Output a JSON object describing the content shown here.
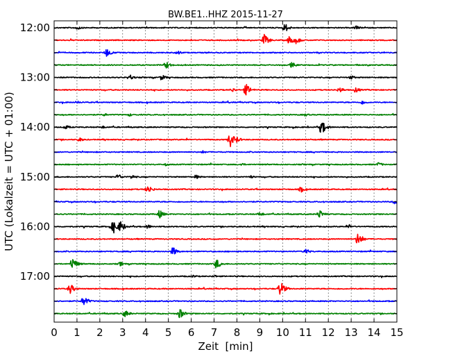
{
  "chart_data": {
    "type": "line",
    "title": "BW.BE1..HHZ 2015-11-27",
    "xlabel": "Zeit  [min]",
    "ylabel": "UTC (Lokalzeit = UTC + 01:00)",
    "xlim": [
      0,
      15
    ],
    "x_ticks": [
      "0",
      "1",
      "2",
      "3",
      "4",
      "5",
      "6",
      "7",
      "8",
      "9",
      "10",
      "11",
      "12",
      "13",
      "14",
      "15"
    ],
    "y_tick_labels": [
      "12:00",
      "13:00",
      "14:00",
      "15:00",
      "16:00",
      "17:00"
    ],
    "grid": true,
    "colors": [
      "#000000",
      "#ff0000",
      "#0000ff",
      "#008000"
    ],
    "traces": [
      {
        "time": "12:00",
        "color": "#000000",
        "events": [
          [
            1.0,
            0.3
          ],
          [
            10.1,
            0.6
          ],
          [
            13.2,
            0.3
          ]
        ]
      },
      {
        "time": "12:15",
        "color": "#ff0000",
        "events": [
          [
            9.2,
            0.8
          ],
          [
            10.3,
            0.6
          ],
          [
            10.6,
            0.5
          ]
        ]
      },
      {
        "time": "12:30",
        "color": "#0000ff",
        "events": [
          [
            2.3,
            0.6
          ],
          [
            5.4,
            0.3
          ]
        ]
      },
      {
        "time": "12:45",
        "color": "#008000",
        "events": [
          [
            4.9,
            0.5
          ],
          [
            10.4,
            0.4
          ]
        ]
      },
      {
        "time": "13:00",
        "color": "#000000",
        "events": [
          [
            3.3,
            0.4
          ],
          [
            4.7,
            0.4
          ],
          [
            13.0,
            0.3
          ]
        ]
      },
      {
        "time": "13:15",
        "color": "#ff0000",
        "events": [
          [
            7.8,
            0.3
          ],
          [
            8.4,
            0.8
          ],
          [
            12.5,
            0.4
          ],
          [
            13.2,
            0.4
          ]
        ]
      },
      {
        "time": "13:30",
        "color": "#0000ff",
        "events": [
          [
            1.0,
            0.2
          ],
          [
            13.5,
            0.3
          ]
        ]
      },
      {
        "time": "13:45",
        "color": "#008000",
        "events": [
          [
            2.2,
            0.2
          ],
          [
            3.3,
            0.2
          ],
          [
            11.0,
            0.2
          ]
        ]
      },
      {
        "time": "14:00",
        "color": "#000000",
        "events": [
          [
            0.5,
            0.3
          ],
          [
            2.1,
            0.2
          ],
          [
            11.7,
            1.0
          ]
        ]
      },
      {
        "time": "14:15",
        "color": "#ff0000",
        "events": [
          [
            1.1,
            0.3
          ],
          [
            7.7,
            1.0
          ],
          [
            8.0,
            0.4
          ]
        ]
      },
      {
        "time": "14:30",
        "color": "#0000ff",
        "events": [
          [
            6.5,
            0.2
          ]
        ]
      },
      {
        "time": "14:45",
        "color": "#008000",
        "events": [
          [
            4.9,
            0.2
          ],
          [
            8.2,
            0.2
          ],
          [
            14.2,
            0.3
          ]
        ]
      },
      {
        "time": "15:00",
        "color": "#000000",
        "events": [
          [
            2.8,
            0.4
          ],
          [
            3.4,
            0.3
          ],
          [
            6.2,
            0.3
          ],
          [
            8.6,
            0.2
          ]
        ]
      },
      {
        "time": "15:15",
        "color": "#ff0000",
        "events": [
          [
            4.1,
            0.6
          ],
          [
            10.8,
            0.4
          ]
        ]
      },
      {
        "time": "15:30",
        "color": "#0000ff",
        "events": [
          [
            14.9,
            0.3
          ]
        ]
      },
      {
        "time": "15:45",
        "color": "#008000",
        "events": [
          [
            4.6,
            0.6
          ],
          [
            9.0,
            0.3
          ],
          [
            11.6,
            0.6
          ]
        ]
      },
      {
        "time": "16:00",
        "color": "#000000",
        "events": [
          [
            2.6,
            0.9
          ],
          [
            2.9,
            0.8
          ],
          [
            4.1,
            0.3
          ],
          [
            12.9,
            0.3
          ]
        ]
      },
      {
        "time": "16:15",
        "color": "#ff0000",
        "events": [
          [
            13.3,
            0.9
          ]
        ]
      },
      {
        "time": "16:30",
        "color": "#0000ff",
        "events": [
          [
            5.2,
            0.6
          ],
          [
            11.0,
            0.4
          ]
        ]
      },
      {
        "time": "16:45",
        "color": "#008000",
        "events": [
          [
            0.8,
            0.9
          ],
          [
            2.9,
            0.3
          ],
          [
            7.1,
            0.7
          ]
        ]
      },
      {
        "time": "17:00",
        "color": "#000000",
        "events": [
          [
            6.1,
            0.2
          ],
          [
            7.0,
            0.2
          ]
        ]
      },
      {
        "time": "17:15",
        "color": "#ff0000",
        "events": [
          [
            0.7,
            0.7
          ],
          [
            9.9,
            1.0
          ]
        ]
      },
      {
        "time": "17:30",
        "color": "#0000ff",
        "events": [
          [
            1.3,
            0.7
          ]
        ]
      },
      {
        "time": "17:45",
        "color": "#008000",
        "events": [
          [
            3.1,
            0.5
          ],
          [
            5.5,
            0.7
          ]
        ]
      }
    ]
  }
}
